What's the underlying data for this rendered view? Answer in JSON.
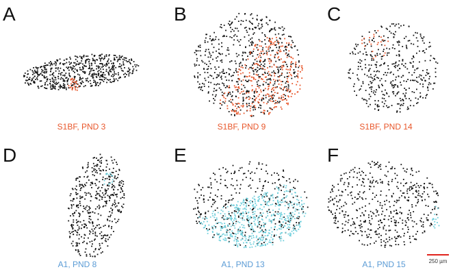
{
  "chart_data": [
    {
      "type": "scatter",
      "panel": "A",
      "caption": "S1BF, PND 3",
      "caption_color": "#e8562a",
      "series": [
        {
          "name": "",
          "color": "#111111",
          "shape": "flat-horizontal-band",
          "density": "high"
        },
        {
          "name": "",
          "color": "#e8562a",
          "shape": "small-central-cluster",
          "density": "low"
        }
      ]
    },
    {
      "type": "scatter",
      "panel": "B",
      "caption": "S1BF, PND 9",
      "caption_color": "#e8562a",
      "series": [
        {
          "name": "",
          "color": "#111111",
          "shape": "round-blob",
          "density": "high"
        },
        {
          "name": "",
          "color": "#e8562a",
          "shape": "right-and-lower-half",
          "density": "high"
        }
      ]
    },
    {
      "type": "scatter",
      "panel": "C",
      "caption": "S1BF, PND 14",
      "caption_color": "#e8562a",
      "series": [
        {
          "name": "",
          "color": "#111111",
          "shape": "rounded-blob",
          "density": "medium"
        },
        {
          "name": "",
          "color": "#e8562a",
          "shape": "sparse-top-region",
          "density": "low"
        }
      ]
    },
    {
      "type": "scatter",
      "panel": "D",
      "caption": "A1, PND 8",
      "caption_color": "#5a9bd5",
      "series": [
        {
          "name": "",
          "color": "#111111",
          "shape": "tilted-elongated-ellipse",
          "density": "high"
        },
        {
          "name": "",
          "color": "#6fcfdc",
          "shape": "top-tip",
          "density": "low"
        }
      ]
    },
    {
      "type": "scatter",
      "panel": "E",
      "caption": "A1, PND 13",
      "caption_color": "#5a9bd5",
      "series": [
        {
          "name": "",
          "color": "#111111",
          "shape": "wide-blob",
          "density": "medium"
        },
        {
          "name": "",
          "color": "#6fcfdc",
          "shape": "lower-and-right-region",
          "density": "high"
        }
      ]
    },
    {
      "type": "scatter",
      "panel": "F",
      "caption": "A1, PND 15",
      "caption_color": "#5a9bd5",
      "series": [
        {
          "name": "",
          "color": "#111111",
          "shape": "wide-blob",
          "density": "medium"
        },
        {
          "name": "",
          "color": "#6fcfdc",
          "shape": "right-edge-strip",
          "density": "low"
        }
      ]
    }
  ],
  "scale_bar": {
    "label": "250 µm",
    "color": "#e0221b"
  }
}
